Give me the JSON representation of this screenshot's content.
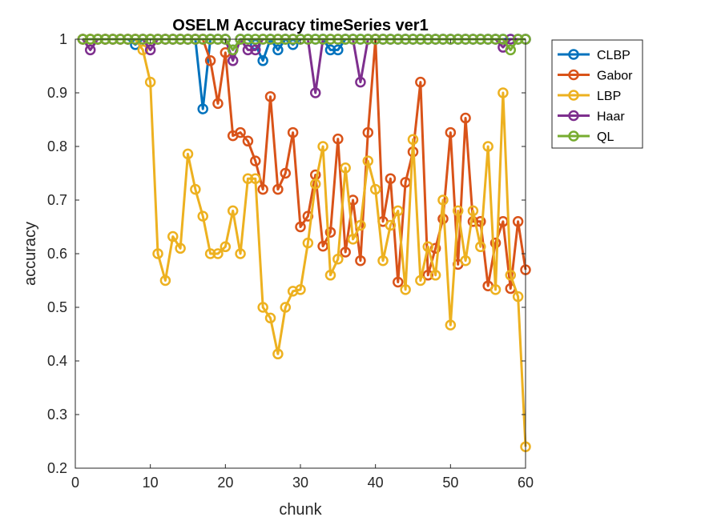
{
  "chart_data": {
    "type": "line",
    "title": "OSELM Accuracy timeSeries ver1",
    "xlabel": "chunk",
    "ylabel": "accuracy",
    "xlim": [
      0,
      60
    ],
    "ylim": [
      0.2,
      1
    ],
    "xticks": [
      "0",
      "10",
      "20",
      "30",
      "40",
      "50",
      "60"
    ],
    "yticks": [
      "0.2",
      "0.3",
      "0.4",
      "0.5",
      "0.6",
      "0.7",
      "0.8",
      "0.9",
      "1"
    ],
    "legend_position": "outside-top-right",
    "x": [
      1,
      2,
      3,
      4,
      5,
      6,
      7,
      8,
      9,
      10,
      11,
      12,
      13,
      14,
      15,
      16,
      17,
      18,
      19,
      20,
      21,
      22,
      23,
      24,
      25,
      26,
      27,
      28,
      29,
      30,
      31,
      32,
      33,
      34,
      35,
      36,
      37,
      38,
      39,
      40,
      41,
      42,
      43,
      44,
      45,
      46,
      47,
      48,
      49,
      50,
      51,
      52,
      53,
      54,
      55,
      56,
      57,
      58,
      59,
      60
    ],
    "series": [
      {
        "name": "CLBP",
        "color": "#0072BD",
        "values": [
          1,
          1,
          1,
          1,
          1,
          1,
          1,
          0.99,
          1,
          1,
          1,
          1,
          1,
          1,
          1,
          1,
          0.87,
          1,
          1,
          1,
          0.98,
          1,
          1,
          0.99,
          0.96,
          1,
          0.98,
          1,
          0.99,
          1,
          1,
          1,
          1,
          0.98,
          0.98,
          1,
          1,
          1,
          1,
          1,
          1,
          1,
          1,
          1,
          1,
          1,
          1,
          1,
          1,
          1,
          1,
          1,
          1,
          1,
          1,
          1,
          1,
          1,
          1,
          1
        ]
      },
      {
        "name": "Gabor",
        "color": "#D95319",
        "values": [
          1,
          1,
          1,
          1,
          1,
          1,
          1,
          1,
          1,
          1,
          1,
          1,
          1,
          1,
          1,
          1,
          1,
          0.96,
          0.88,
          0.975,
          0.82,
          0.826,
          0.81,
          0.773,
          0.72,
          0.893,
          0.72,
          0.75,
          0.826,
          0.65,
          0.67,
          0.747,
          0.614,
          0.64,
          0.814,
          0.603,
          0.7,
          0.587,
          0.826,
          1,
          0.66,
          0.74,
          0.547,
          0.733,
          0.79,
          0.92,
          0.56,
          0.61,
          0.665,
          0.826,
          0.58,
          0.853,
          0.66,
          0.66,
          0.54,
          0.62,
          0.66,
          0.535,
          0.66,
          0.57
        ]
      },
      {
        "name": "LBP",
        "color": "#EDB120",
        "values": [
          1,
          1,
          1,
          1,
          1,
          1,
          1,
          1,
          0.98,
          0.92,
          0.6,
          0.55,
          0.632,
          0.61,
          0.786,
          0.72,
          0.67,
          0.6,
          0.6,
          0.613,
          0.68,
          0.6,
          0.74,
          0.74,
          0.5,
          0.48,
          0.413,
          0.5,
          0.53,
          0.533,
          0.62,
          0.73,
          0.8,
          0.56,
          0.59,
          0.76,
          0.627,
          0.653,
          0.773,
          0.72,
          0.587,
          0.653,
          0.68,
          0.533,
          0.813,
          0.55,
          0.613,
          0.56,
          0.7,
          0.467,
          0.68,
          0.587,
          0.68,
          0.613,
          0.8,
          0.533,
          0.9,
          0.56,
          0.52,
          0.24
        ]
      },
      {
        "name": "Haar",
        "color": "#7E2F8E",
        "values": [
          1,
          0.98,
          1,
          1,
          1,
          1,
          1,
          1,
          1,
          0.98,
          1,
          1,
          1,
          1,
          1,
          1,
          1,
          1,
          1,
          1,
          0.96,
          1,
          0.98,
          0.98,
          1,
          1,
          1,
          1,
          1,
          1,
          1,
          0.9,
          1,
          1,
          1,
          1,
          1,
          0.92,
          1,
          1,
          1,
          1,
          1,
          1,
          1,
          1,
          1,
          1,
          1,
          1,
          1,
          1,
          1,
          1,
          1,
          1,
          0.985,
          1,
          1,
          1
        ]
      },
      {
        "name": "QL",
        "color": "#77AC30",
        "values": [
          1,
          1,
          1,
          1,
          1,
          1,
          1,
          1,
          1,
          1,
          1,
          1,
          1,
          1,
          1,
          1,
          1,
          1,
          1,
          1,
          0.98,
          1,
          1,
          1,
          1,
          1,
          1,
          1,
          1,
          1,
          1,
          1,
          1,
          1,
          1,
          1,
          1,
          1,
          1,
          1,
          1,
          1,
          1,
          1,
          1,
          1,
          1,
          1,
          1,
          1,
          1,
          1,
          1,
          1,
          1,
          1,
          1,
          0.98,
          1,
          1
        ]
      }
    ]
  }
}
